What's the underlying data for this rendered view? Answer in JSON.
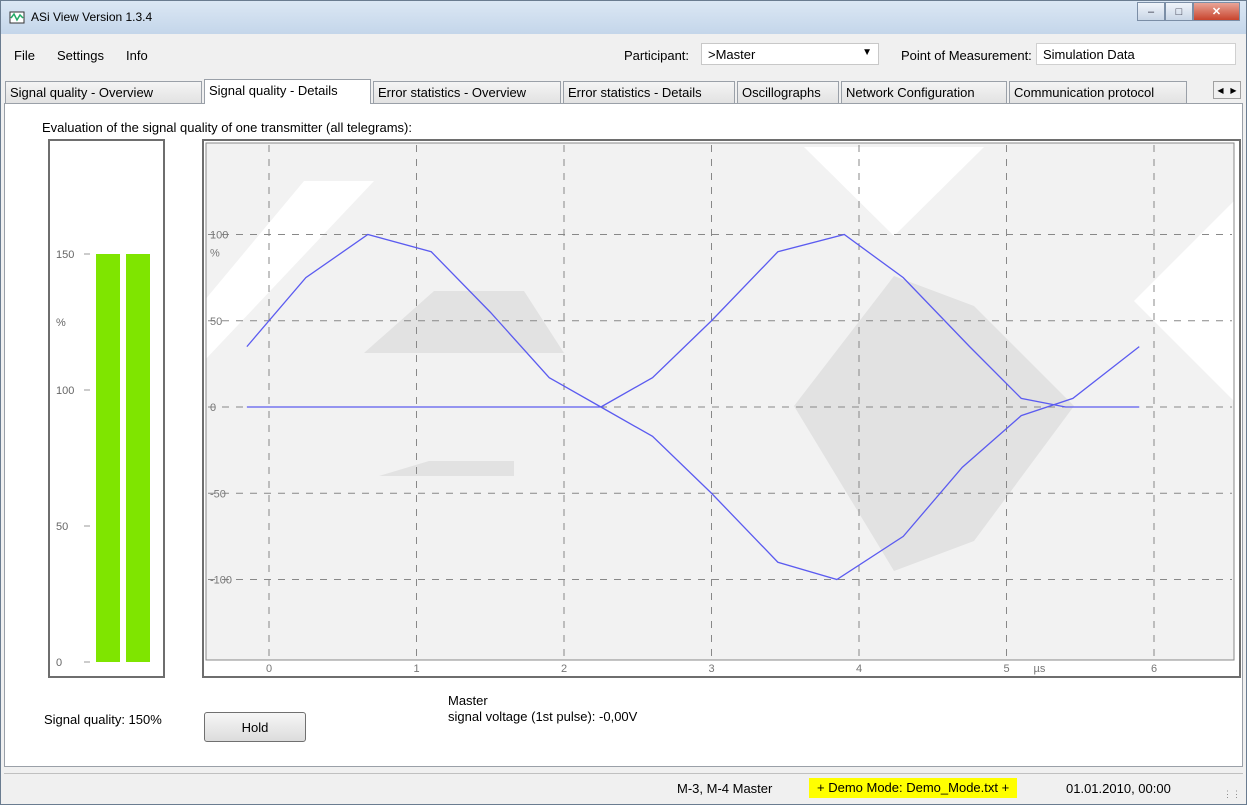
{
  "window": {
    "title": "ASi View Version 1.3.4"
  },
  "menu": {
    "items": [
      "File",
      "Settings",
      "Info"
    ]
  },
  "toolbar": {
    "participant_label": "Participant:",
    "participant_value": ">Master",
    "point_label": "Point of Measurement:",
    "point_value": "Simulation Data"
  },
  "tabs": [
    "Signal quality - Overview",
    "Signal quality - Details",
    "Error statistics - Overview",
    "Error statistics - Details",
    "Oscillographs",
    "Network Configuration",
    "Communication protocol"
  ],
  "active_tab": 1,
  "main": {
    "heading": "Evaluation of the signal quality of one transmitter (all telegrams):",
    "signal_quality_text": "Signal quality: 150%",
    "hold_label": "Hold",
    "master_name": "Master",
    "master_voltage": "signal voltage (1st pulse): -0,00V"
  },
  "bar_chart": {
    "ticks": [
      "150",
      "%",
      "100",
      "50",
      "0"
    ],
    "values": [
      150,
      150
    ],
    "ylim": [
      0,
      175
    ],
    "color": "#7fe500"
  },
  "chart_data": {
    "type": "line",
    "xlim": [
      -0.2,
      6.6
    ],
    "ylim": [
      -150,
      150
    ],
    "xticks": [
      "0",
      "1",
      "2",
      "3",
      "4",
      "5",
      "µs",
      "6"
    ],
    "yticks": [
      "100",
      "%",
      "50",
      "0",
      "-50",
      "-100"
    ],
    "grid": true,
    "line_color": "#5b5bf0",
    "series": [
      {
        "x": [
          -0.15,
          0.25,
          0.67,
          1.1,
          1.5,
          1.9,
          2.25
        ],
        "y": [
          35,
          75,
          100,
          90,
          55,
          17,
          0
        ]
      },
      {
        "x": [
          2.25,
          2.6,
          3.0,
          3.45,
          3.9,
          4.3,
          4.75,
          5.1,
          5.4
        ],
        "y": [
          0,
          17,
          50,
          90,
          100,
          75,
          35,
          5,
          0
        ]
      },
      {
        "x": [
          2.25,
          2.6,
          3.0,
          3.45,
          3.85,
          4.3,
          4.7,
          5.1,
          5.45,
          5.9
        ],
        "y": [
          0,
          -17,
          -50,
          -90,
          -100,
          -75,
          -35,
          -5,
          5,
          35
        ]
      },
      {
        "x": [
          -0.15,
          2.25
        ],
        "y": [
          0,
          0
        ]
      },
      {
        "x": [
          5.4,
          5.9
        ],
        "y": [
          0,
          0
        ]
      }
    ]
  },
  "status": {
    "participant_info": "M-3, M-4 Master",
    "demo": "+ Demo Mode: Demo_Mode.txt +",
    "datetime": "01.01.2010, 00:00"
  }
}
